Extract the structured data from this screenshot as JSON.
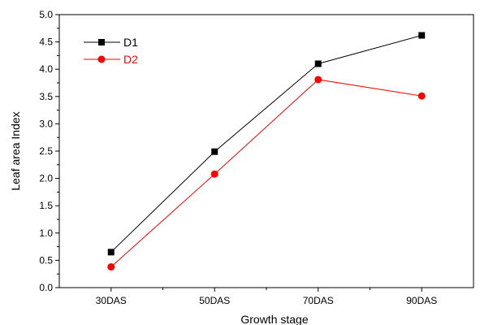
{
  "chart_data": {
    "type": "line",
    "title": "",
    "xlabel": "Growth stage",
    "ylabel": "Leaf area Index",
    "categories": [
      "30DAS",
      "50DAS",
      "70DAS",
      "90DAS"
    ],
    "ylim": [
      0,
      5
    ],
    "yticks": [
      "0.0",
      "0.5",
      "1.0",
      "1.5",
      "2.0",
      "2.5",
      "3.0",
      "3.5",
      "4.0",
      "4.5",
      "5.0"
    ],
    "grid": false,
    "legend_position": "top-left",
    "series": [
      {
        "name": "D1",
        "values": [
          0.65,
          2.49,
          4.1,
          4.62
        ],
        "color": "#000000",
        "marker": "square"
      },
      {
        "name": "D2",
        "values": [
          0.38,
          2.08,
          3.81,
          3.51
        ],
        "color": "#ff0000",
        "marker": "circle"
      }
    ]
  }
}
